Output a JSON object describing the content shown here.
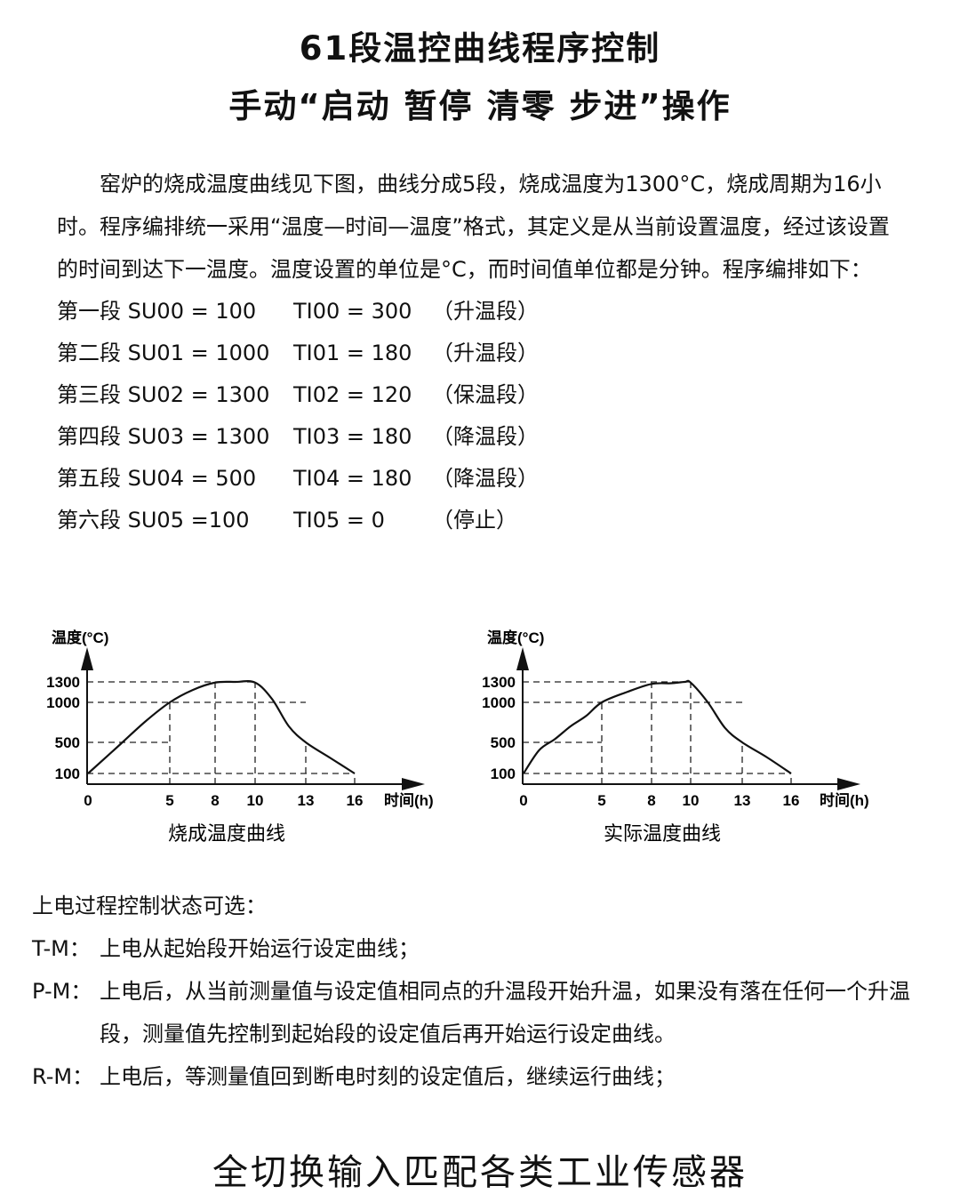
{
  "title1": "61段温控曲线程序控制",
  "title2": "手动“启动 暂停 清零 步进”操作",
  "intro": "窑炉的烧成温度曲线见下图，曲线分成5段，烧成温度为1300°C，烧成周期为16小时。程序编排统一采用“温度—时间—温度”格式，其定义是从当前设置温度，经过该设置的时间到达下一温度。温度设置的单位是°C，而时间值单位都是分钟。程序编排如下：",
  "program": [
    {
      "su": "第一段 SU00 = 100",
      "ti": "TI00 = 300",
      "note": "（升温段）"
    },
    {
      "su": "第二段 SU01 = 1000",
      "ti": "TI01 = 180",
      "note": "（升温段）"
    },
    {
      "su": "第三段 SU02 = 1300",
      "ti": "TI02 = 120",
      "note": "（保温段）"
    },
    {
      "su": "第四段 SU03 = 1300",
      "ti": "TI03 = 180",
      "note": "（降温段）"
    },
    {
      "su": "第五段 SU04 = 500",
      "ti": "TI04 = 180",
      "note": "（降温段）"
    },
    {
      "su": "第六段 SU05 =100",
      "ti": "TI05 = 0",
      "note": "（停止）"
    }
  ],
  "chart_data": [
    {
      "type": "line",
      "title": "烧成温度曲线",
      "ylabel": "温度(°C)",
      "xlabel": "时间(h)",
      "xticks": [
        0,
        5,
        8,
        10,
        13,
        16
      ],
      "yticks": [
        100,
        500,
        1000,
        1300
      ],
      "grid": "dashed guide lines at ticks",
      "x": [
        0,
        2,
        3.5,
        5,
        6.5,
        8,
        9,
        10,
        11,
        12,
        13,
        14.5,
        16
      ],
      "y": [
        100,
        480,
        760,
        1000,
        1180,
        1290,
        1300,
        1290,
        1050,
        700,
        500,
        300,
        100
      ]
    },
    {
      "type": "line",
      "title": "实际温度曲线",
      "ylabel": "温度(°C)",
      "xlabel": "时间(h)",
      "xticks": [
        0,
        5,
        8,
        10,
        13,
        16
      ],
      "yticks": [
        100,
        500,
        1000,
        1300
      ],
      "grid": "dashed guide lines at ticks",
      "x": [
        0,
        1,
        2,
        3,
        4,
        5,
        6.5,
        8,
        9,
        9.7,
        10,
        11,
        12,
        13,
        14.5,
        16
      ],
      "y": [
        100,
        400,
        540,
        700,
        830,
        1000,
        1150,
        1270,
        1280,
        1300,
        1290,
        1000,
        680,
        500,
        310,
        100
      ]
    }
  ],
  "power": {
    "heading": "上电过程控制状态可选：",
    "items": [
      {
        "label": "T-M：",
        "text": "上电从起始段开始运行设定曲线；"
      },
      {
        "label": "P-M：",
        "text": "上电后，从当前测量值与设定值相同点的升温段开始升温，如果没有落在任何一个升温段，测量值先控制到起始段的设定值后再开始运行设定曲线。"
      },
      {
        "label": "R-M：",
        "text": "上电后，等测量值回到断电时刻的设定值后，继续运行曲线；"
      }
    ]
  },
  "footer": "全切换输入匹配各类工业传感器"
}
